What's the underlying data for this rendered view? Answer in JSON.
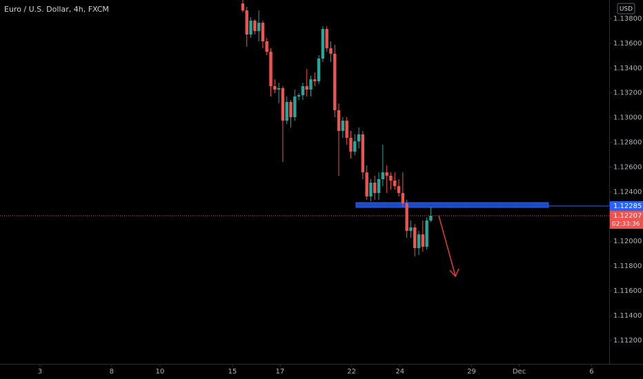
{
  "chart_data": {
    "type": "candlestick",
    "title": "Euro / U.S. Dollar, 4h, FXCM",
    "currency": "USD",
    "up_color": "#26a69a",
    "down_color": "#ef5350",
    "x": [
      0,
      1,
      2,
      3,
      4,
      5,
      6,
      7,
      8,
      9,
      10,
      11,
      12,
      13,
      14,
      15,
      16,
      17,
      18,
      19,
      20,
      21,
      22,
      23,
      24,
      25,
      26,
      27,
      28,
      29,
      30,
      31,
      32,
      33,
      34,
      35,
      36,
      37,
      38,
      39,
      40,
      41,
      42,
      43,
      44,
      45,
      46,
      47
    ],
    "open": [
      1.13922,
      1.13866,
      1.13671,
      1.13783,
      1.13699,
      1.13766,
      1.13616,
      1.13532,
      1.13254,
      1.13226,
      1.13237,
      1.12975,
      1.13126,
      1.13003,
      1.1317,
      1.13181,
      1.13254,
      1.13226,
      1.13309,
      1.13293,
      1.13477,
      1.13716,
      1.1356,
      1.13516,
      1.13059,
      1.12892,
      1.12975,
      1.12836,
      1.12725,
      1.12808,
      1.12864,
      1.12557,
      1.12363,
      1.12474,
      1.1239,
      1.12502,
      1.12557,
      1.1253,
      1.12491,
      1.12446,
      1.1239,
      1.12307,
      1.12084,
      1.12112,
      1.11945,
      1.12056,
      1.11956,
      1.12168
    ],
    "high": [
      1.1395,
      1.13894,
      1.13811,
      1.13794,
      1.13866,
      1.13783,
      1.13644,
      1.1356,
      1.13309,
      1.13282,
      1.13254,
      1.1317,
      1.13142,
      1.13226,
      1.13198,
      1.13282,
      1.13393,
      1.13337,
      1.13365,
      1.13504,
      1.13738,
      1.13738,
      1.13616,
      1.13588,
      1.13114,
      1.13003,
      1.13003,
      1.12892,
      1.12864,
      1.1292,
      1.12892,
      1.12613,
      1.12502,
      1.1253,
      1.12557,
      1.1278,
      1.12613,
      1.12557,
      1.12557,
      1.12502,
      1.12557,
      1.12335,
      1.12168,
      1.1214,
      1.12084,
      1.12168,
      1.12195,
      1.12279
    ],
    "low": [
      1.1385,
      1.13571,
      1.13644,
      1.13671,
      1.13616,
      1.1356,
      1.13504,
      1.1317,
      1.13198,
      1.13114,
      1.12641,
      1.12947,
      1.1292,
      1.12975,
      1.13142,
      1.13142,
      1.1317,
      1.1317,
      1.13254,
      1.1327,
      1.13449,
      1.13532,
      1.13449,
      1.13003,
      1.1253,
      1.12836,
      1.1278,
      1.12669,
      1.12697,
      1.12752,
      1.12502,
      1.12335,
      1.12324,
      1.12335,
      1.12335,
      1.12446,
      1.1239,
      1.12418,
      1.12418,
      1.12363,
      1.12279,
      1.12028,
      1.12028,
      1.11878,
      1.11889,
      1.11917,
      1.11934,
      1.12156
    ],
    "close": [
      1.13866,
      1.13671,
      1.13783,
      1.13699,
      1.13766,
      1.13616,
      1.13532,
      1.13254,
      1.13226,
      1.13237,
      1.12975,
      1.13126,
      1.13003,
      1.1317,
      1.13181,
      1.13254,
      1.13226,
      1.13309,
      1.13293,
      1.13477,
      1.13716,
      1.1356,
      1.13516,
      1.13059,
      1.12892,
      1.12975,
      1.12836,
      1.12725,
      1.12808,
      1.12864,
      1.12557,
      1.12363,
      1.12474,
      1.1239,
      1.12502,
      1.12557,
      1.1253,
      1.12491,
      1.12446,
      1.1239,
      1.12307,
      1.12084,
      1.12112,
      1.11945,
      1.12056,
      1.11956,
      1.12168,
      1.12207
    ],
    "xlim": [
      -60.7,
      91.6
    ],
    "xticks": [
      {
        "value": -50.7,
        "label": "3"
      },
      {
        "value": -32.8,
        "label": "8"
      },
      {
        "value": -20.7,
        "label": "10"
      },
      {
        "value": -2.6,
        "label": "15"
      },
      {
        "value": 9.3,
        "label": "17"
      },
      {
        "value": 27.2,
        "label": "22"
      },
      {
        "value": 39.3,
        "label": "24"
      },
      {
        "value": 57.2,
        "label": "29"
      },
      {
        "value": 69.1,
        "label": "Dec"
      },
      {
        "value": 87.2,
        "label": "6"
      }
    ],
    "ylim": [
      1.1101,
      1.1395
    ],
    "yticks": [
      {
        "value": 1.138,
        "label": "1.13800"
      },
      {
        "value": 1.136,
        "label": "1.13600"
      },
      {
        "value": 1.134,
        "label": "1.13400"
      },
      {
        "value": 1.132,
        "label": "1.13200"
      },
      {
        "value": 1.13,
        "label": "1.13000"
      },
      {
        "value": 1.128,
        "label": "1.12800"
      },
      {
        "value": 1.126,
        "label": "1.12600"
      },
      {
        "value": 1.124,
        "label": "1.12400"
      },
      {
        "value": 1.12,
        "label": "1.12000"
      },
      {
        "value": 1.118,
        "label": "1.11800"
      },
      {
        "value": 1.116,
        "label": "1.11600"
      },
      {
        "value": 1.114,
        "label": "1.11400"
      },
      {
        "value": 1.112,
        "label": "1.11200"
      }
    ],
    "level": {
      "value": 1.12285,
      "label": "1.12285",
      "color": "#2962ff"
    },
    "last_price": {
      "value": 1.12207,
      "label": "1.12207",
      "countdown": "02:33:36",
      "color": "#ef5350"
    }
  }
}
